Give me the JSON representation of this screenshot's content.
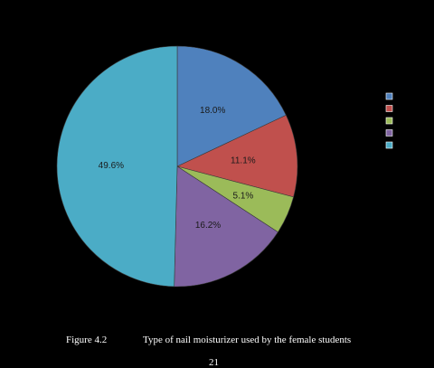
{
  "chart_data": {
    "type": "pie",
    "title": "",
    "categories": [
      "",
      "",
      "",
      "",
      ""
    ],
    "values": [
      18.0,
      11.1,
      5.1,
      16.2,
      49.6
    ],
    "labels": [
      "18.0%",
      "11.1%",
      "5.1%",
      "16.2%",
      "49.6%"
    ],
    "colors": [
      "#4f81bd",
      "#c0504d",
      "#9bbb59",
      "#8064a2",
      "#4bacc6"
    ],
    "start_angle_deg": 0,
    "direction": "clockwise",
    "legend_position": "right"
  },
  "caption": {
    "figure_label": "Figure 4.2",
    "text": "Type of nail moisturizer used by the female students"
  },
  "page_number": "21"
}
